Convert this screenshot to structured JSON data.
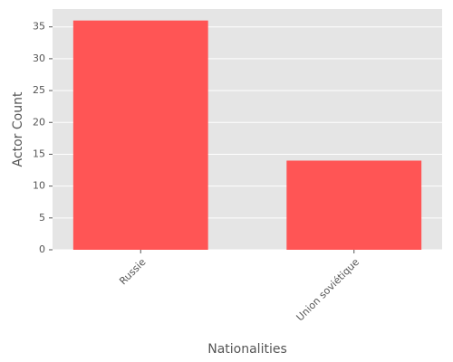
{
  "chart_data": {
    "type": "bar",
    "categories": [
      "Russie",
      "Union soviétique"
    ],
    "values": [
      36,
      14
    ],
    "color": "#ff5555",
    "xlabel": "Nationalities",
    "ylabel": "Actor Count",
    "ylim": [
      0,
      37.8
    ],
    "yticks": [
      0,
      5,
      10,
      15,
      20,
      25,
      30,
      35
    ],
    "grid": true
  }
}
